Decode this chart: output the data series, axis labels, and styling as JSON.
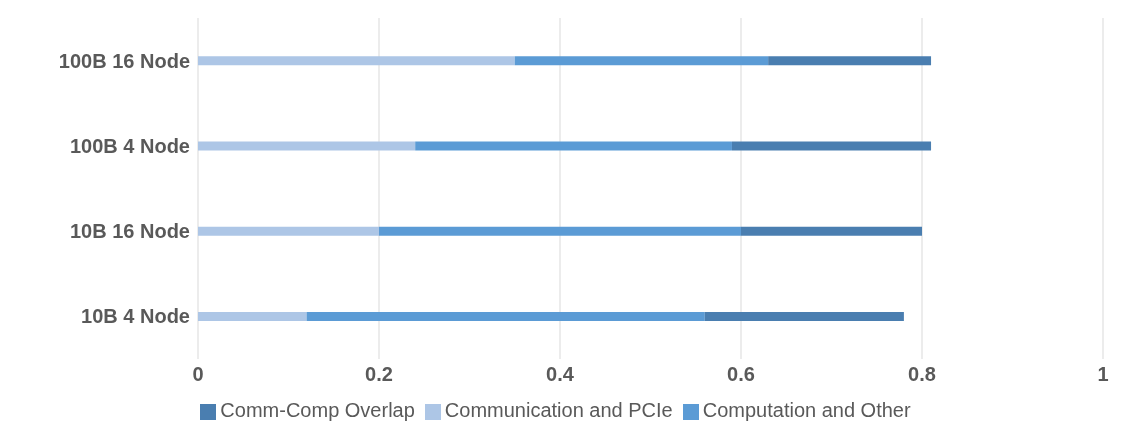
{
  "chart_data": {
    "type": "bar",
    "orientation": "horizontal",
    "stacked": true,
    "categories": [
      "100B 16 Node",
      "100B 4 Node",
      "10B 16 Node",
      "10B 4 Node"
    ],
    "series": [
      {
        "name": "Communication and PCIe",
        "color": "#adc6e6",
        "values": [
          0.35,
          0.24,
          0.2,
          0.12
        ]
      },
      {
        "name": "Computation and Other",
        "color": "#5b9bd5",
        "values": [
          0.28,
          0.35,
          0.4,
          0.44
        ]
      },
      {
        "name": "Comm-Comp Overlap",
        "color": "#4a7eb0",
        "values": [
          0.18,
          0.22,
          0.2,
          0.22
        ]
      }
    ],
    "xlim": [
      0,
      1
    ],
    "xticks": [
      0,
      0.2,
      0.4,
      0.6,
      0.8,
      1
    ],
    "grid": "x",
    "legend": "bottom"
  }
}
